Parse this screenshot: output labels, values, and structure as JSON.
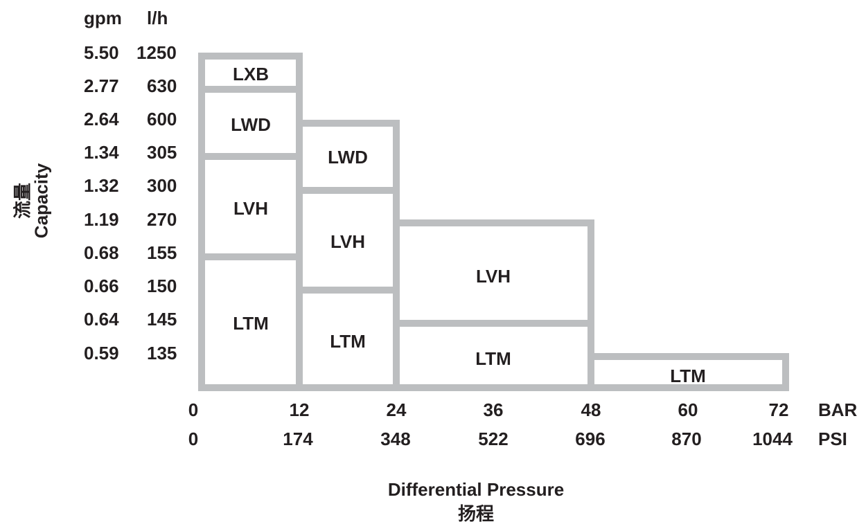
{
  "y_axis": {
    "unit_headers": [
      "gpm",
      "l/h"
    ],
    "rows": [
      {
        "gpm": "5.50",
        "lh": "1250"
      },
      {
        "gpm": "2.77",
        "lh": "630"
      },
      {
        "gpm": "2.64",
        "lh": "600"
      },
      {
        "gpm": "1.34",
        "lh": "305"
      },
      {
        "gpm": "1.32",
        "lh": "300"
      },
      {
        "gpm": "1.19",
        "lh": "270"
      },
      {
        "gpm": "0.68",
        "lh": "155"
      },
      {
        "gpm": "0.66",
        "lh": "150"
      },
      {
        "gpm": "0.64",
        "lh": "145"
      },
      {
        "gpm": "0.59",
        "lh": "135"
      }
    ],
    "title_cn": "流量",
    "title_en": "Capacity"
  },
  "x_axis": {
    "bar_ticks": [
      "0",
      "12",
      "24",
      "36",
      "48",
      "60",
      "72"
    ],
    "psi_ticks": [
      "0",
      "174",
      "348",
      "522",
      "696",
      "870",
      "1044"
    ],
    "bar_unit": "BAR",
    "psi_unit": "PSI",
    "title_en": "Differential Pressure",
    "title_cn": "扬程"
  },
  "regions": [
    {
      "label": "LXB",
      "bar_max": 12,
      "lh_min": 630,
      "lh_max": 1250
    },
    {
      "label": "LWD",
      "bar_max": 12,
      "lh_min": 305,
      "lh_max": 630
    },
    {
      "label": "LVH",
      "bar_max": 12,
      "lh_min": 155,
      "lh_max": 305
    },
    {
      "label": "LTM",
      "bar_max": 12,
      "lh_min": 0,
      "lh_max": 155
    },
    {
      "label": "LWD",
      "bar_max": 24,
      "lh_min": 300,
      "lh_max": 600
    },
    {
      "label": "LVH",
      "bar_max": 24,
      "lh_min": 150,
      "lh_max": 300
    },
    {
      "label": "LTM",
      "bar_max": 24,
      "lh_min": 0,
      "lh_max": 150
    },
    {
      "label": "LVH",
      "bar_max": 48,
      "lh_min": 145,
      "lh_max": 270
    },
    {
      "label": "LTM",
      "bar_max": 48,
      "lh_min": 0,
      "lh_max": 145
    },
    {
      "label": "LTM",
      "bar_max": 72,
      "lh_min": 0,
      "lh_max": 135
    }
  ],
  "colors": {
    "frame": "#bcbec0",
    "text": "#231f20"
  }
}
